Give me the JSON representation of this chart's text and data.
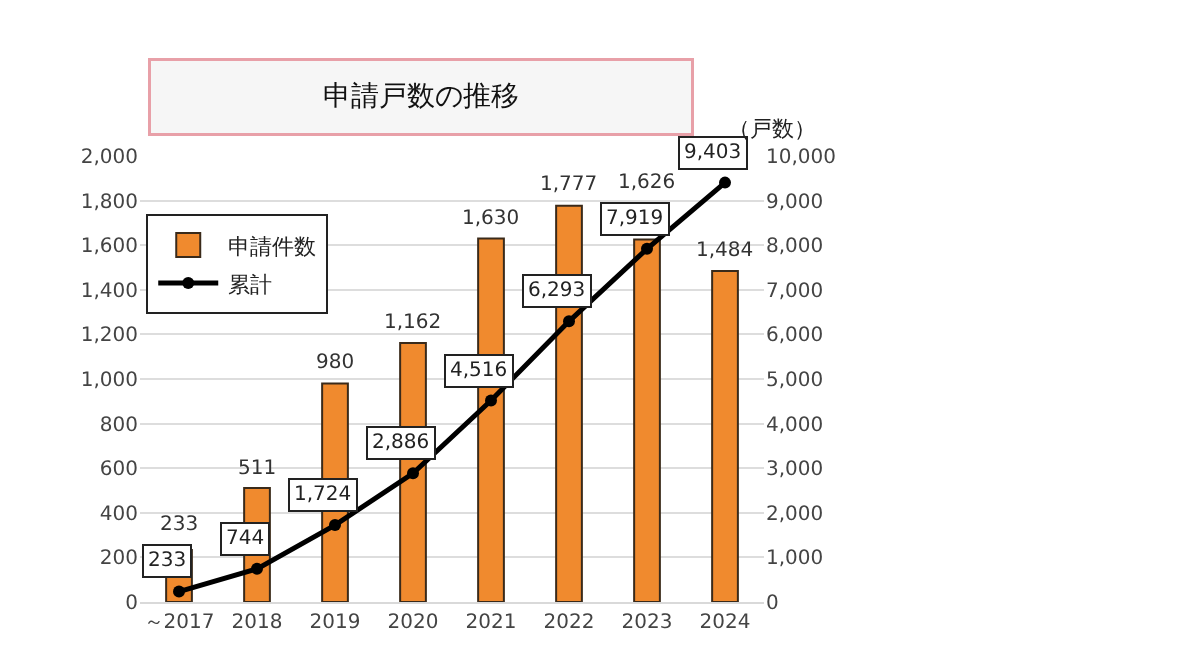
{
  "chart_data": {
    "type": "bar",
    "title": "申請戸数の推移",
    "y2label": "（戸数）",
    "categories": [
      "～2017",
      "2018",
      "2019",
      "2020",
      "2021",
      "2022",
      "2023",
      "2024"
    ],
    "series": [
      {
        "name": "申請件数",
        "color": "#f08a2e",
        "values": [
          233,
          511,
          980,
          1162,
          1630,
          1777,
          1626,
          1484
        ],
        "value_labels": [
          "233",
          "511",
          "980",
          "1,162",
          "1,630",
          "1,777",
          "1,626",
          "1,484"
        ]
      },
      {
        "name": "累計",
        "type": "line",
        "axis": "y2",
        "color": "#000000",
        "marker": "circle",
        "values": [
          233,
          744,
          1724,
          2886,
          4516,
          6293,
          7919,
          9403
        ],
        "value_labels": [
          "233",
          "744",
          "1,724",
          "2,886",
          "4,516",
          "6,293",
          "7,919",
          "9,403"
        ]
      }
    ],
    "ylim": [
      0,
      2000
    ],
    "yticks": [
      0,
      200,
      400,
      600,
      800,
      {
        "value": 1000,
        "label": "1,000"
      },
      {
        "value": 1200,
        "label": "1,200"
      },
      {
        "value": 1400,
        "label": "1,400"
      },
      {
        "value": 1600,
        "label": "1,600"
      },
      {
        "value": 1800,
        "label": "1,800"
      },
      {
        "value": 2000,
        "label": "2,000"
      }
    ],
    "y2lim": [
      0,
      10000
    ],
    "y2ticks": [
      0,
      {
        "value": 1000,
        "label": "1,000"
      },
      {
        "value": 2000,
        "label": "2,000"
      },
      {
        "value": 3000,
        "label": "3,000"
      },
      {
        "value": 4000,
        "label": "4,000"
      },
      {
        "value": 5000,
        "label": "5,000"
      },
      {
        "value": 6000,
        "label": "6,000"
      },
      {
        "value": 7000,
        "label": "7,000"
      },
      {
        "value": 8000,
        "label": "8,000"
      },
      {
        "value": 9000,
        "label": "9,000"
      },
      {
        "value": 10000,
        "label": "10,000"
      }
    ],
    "grid": "y",
    "legend": "top left"
  }
}
